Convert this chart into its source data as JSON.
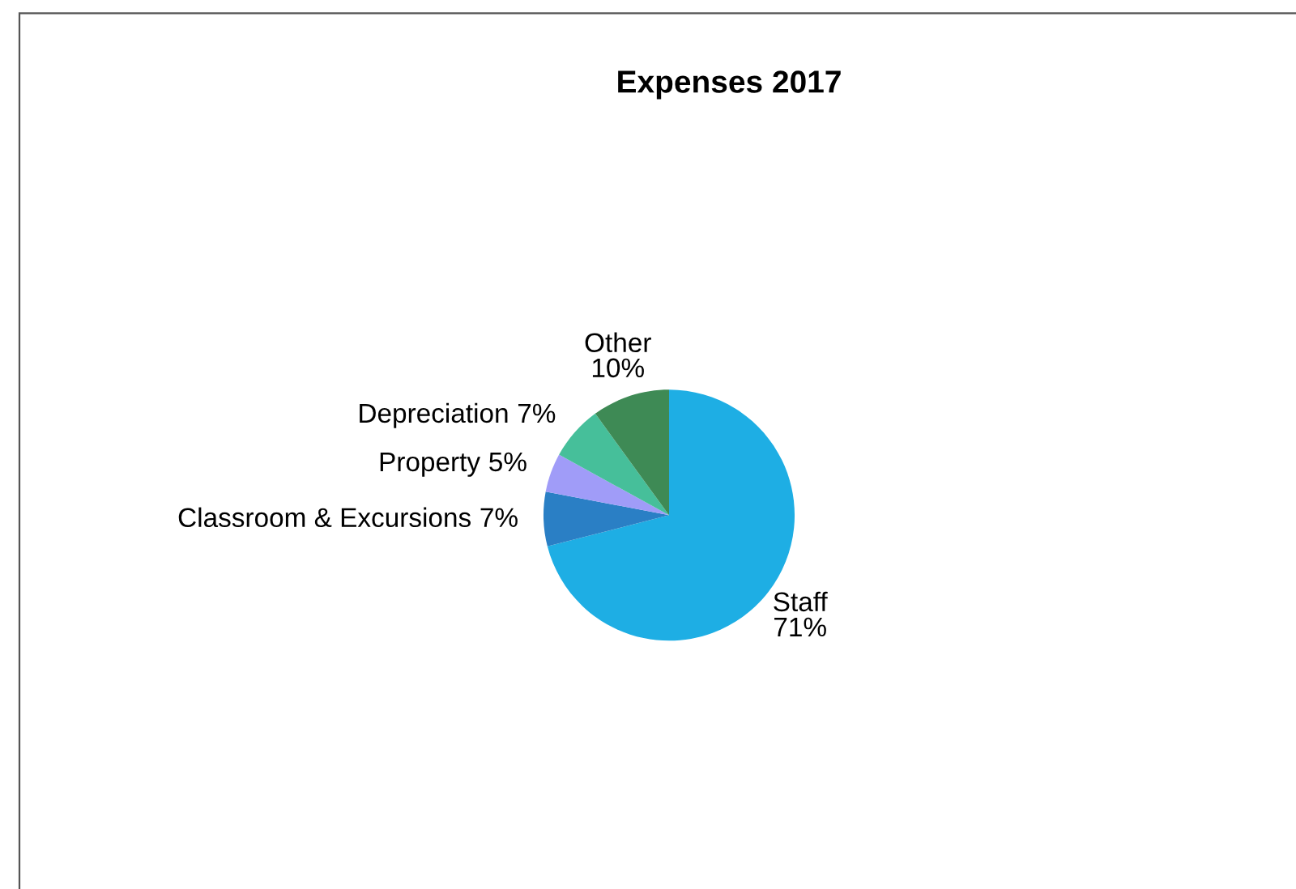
{
  "chart_data": {
    "type": "pie",
    "title": "Expenses 2017",
    "categories": [
      "Staff",
      "Classroom & Excursions",
      "Property",
      "Depreciation",
      "Other"
    ],
    "values": [
      71,
      7,
      5,
      7,
      10
    ],
    "colors": [
      "#1eaee4",
      "#2a7fc5",
      "#a09cf8",
      "#46bf9a",
      "#3e8a55"
    ],
    "value_labels": [
      "71%",
      "7%",
      "5%",
      "7%",
      "10%"
    ]
  }
}
